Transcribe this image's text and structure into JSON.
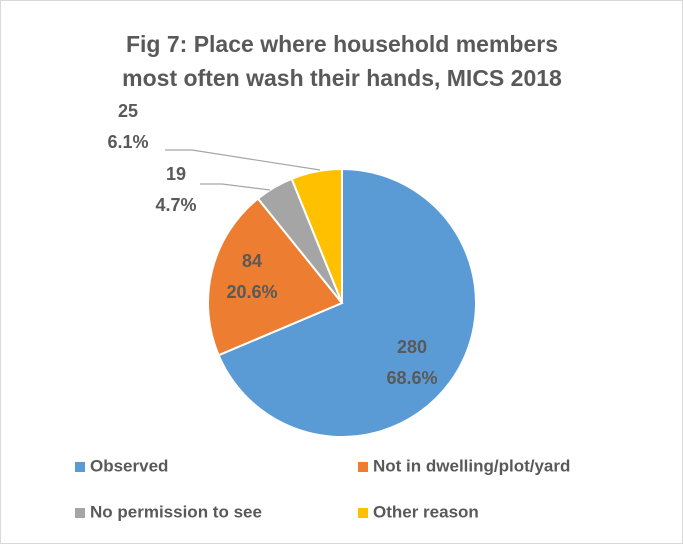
{
  "chart_data": {
    "type": "pie",
    "title": [
      "Fig 7: Place where household members",
      "most often wash their hands, MICS 2018"
    ],
    "categories": [
      "Observed",
      "Not in dwelling/plot/yard",
      "No permission to see",
      "Other reason"
    ],
    "values": [
      280,
      84,
      19,
      25
    ],
    "percentages": [
      68.6,
      20.6,
      4.7,
      6.1
    ],
    "percentage_labels": [
      "68.6%",
      "20.6%",
      "4.7%",
      "6.1%"
    ],
    "colors": [
      "#5b9bd5",
      "#ed7d31",
      "#a5a5a5",
      "#ffc000"
    ],
    "legend": "bottom"
  }
}
